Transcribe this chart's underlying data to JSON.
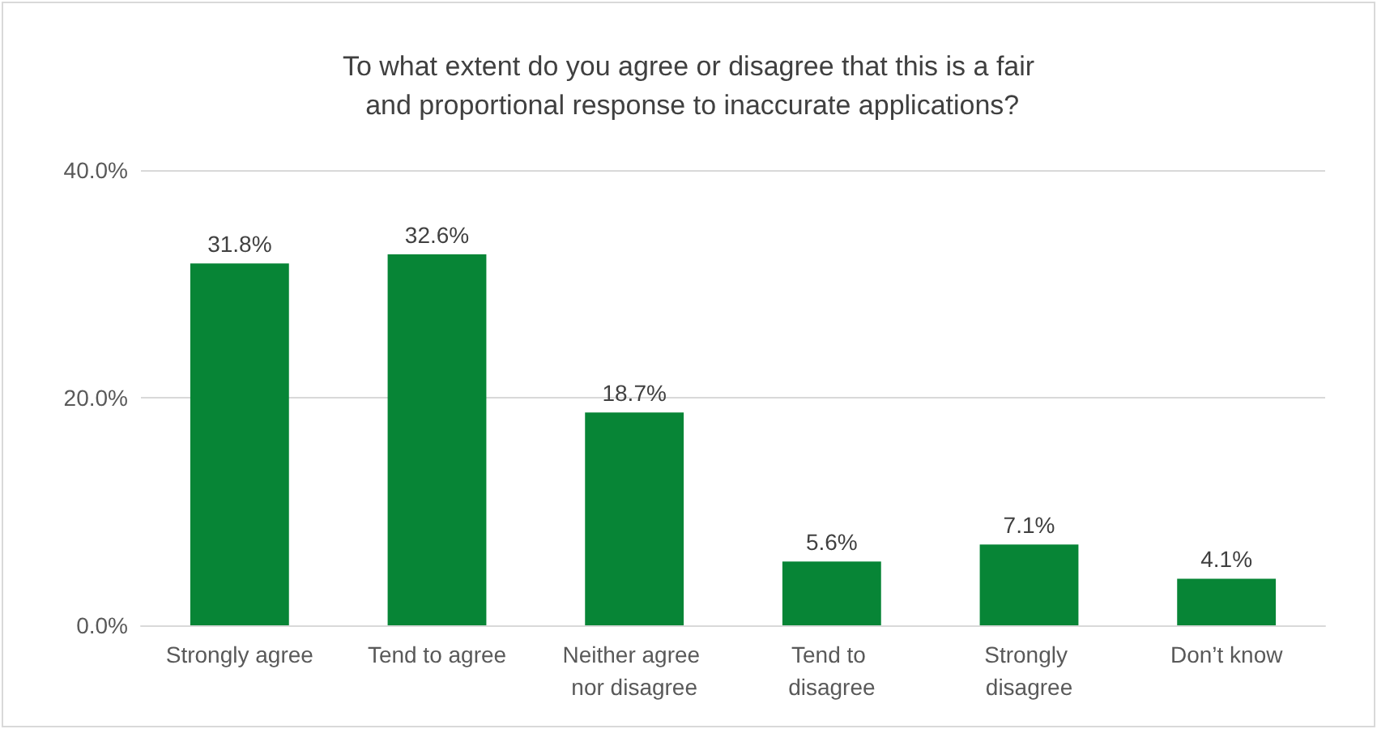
{
  "chart_data": {
    "type": "bar",
    "title": "To what extent do you agree or disagree that this is a fair and proportional response to inaccurate applications?",
    "categories": [
      "Strongly agree",
      "Tend to agree",
      "Neither agree nor disagree",
      "Tend to disagree",
      "Strongly disagree",
      "Don’t know"
    ],
    "values": [
      31.8,
      32.6,
      18.7,
      5.6,
      7.1,
      4.1
    ],
    "value_labels": [
      "31.8%",
      "32.6%",
      "18.7%",
      "5.6%",
      "7.1%",
      "4.1%"
    ],
    "color": "#078536",
    "ylim": [
      0,
      40
    ],
    "yticks": [
      {
        "value": 0,
        "label": "0.0%"
      },
      {
        "value": 20,
        "label": "20.0%"
      },
      {
        "value": 40,
        "label": "40.0%"
      }
    ],
    "grid": "y"
  }
}
